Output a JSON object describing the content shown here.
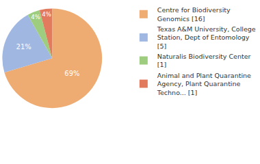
{
  "chart_data": {
    "type": "pie",
    "categories": [
      "Centre for Biodiversity Genomics [16]",
      "Texas A&M University, College Station, Dept of Entomology [5]",
      "Naturalis Biodiversity Center [1]",
      "Animal and Plant Quarantine Agency, Plant Quarantine Techno... [1]"
    ],
    "values": [
      69,
      21,
      4,
      4
    ],
    "value_labels": [
      "69%",
      "21%",
      "4%",
      "4%"
    ],
    "colors": [
      "#efac72",
      "#9fb7e1",
      "#9fcd80",
      "#e27b5e"
    ],
    "data_labels": true,
    "legend": "top right"
  }
}
